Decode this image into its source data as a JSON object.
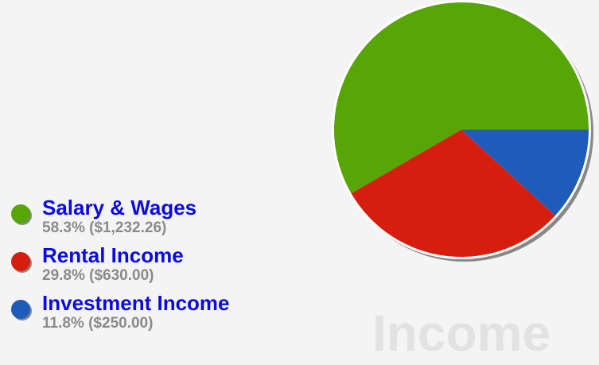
{
  "chart_data": {
    "type": "pie",
    "title": "Income",
    "categories": [
      "Salary & Wages",
      "Rental Income",
      "Investment Income"
    ],
    "values": [
      58.3,
      29.8,
      11.8
    ],
    "value_labels": [
      "58.3% ($1,232.26)",
      "29.8% ($630.00)",
      "11.8% ($250.00)"
    ],
    "colors": [
      "#56a606",
      "#d61e0e",
      "#1f5bb8"
    ]
  }
}
